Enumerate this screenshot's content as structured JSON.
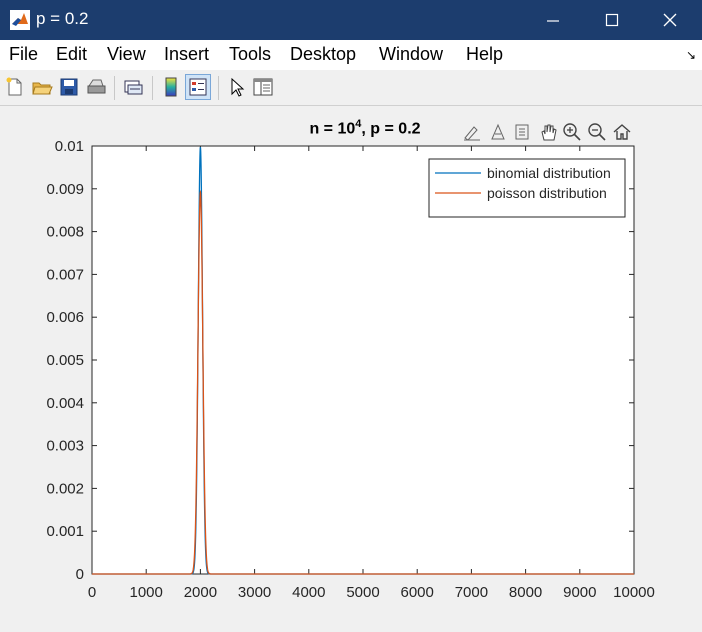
{
  "window": {
    "title": "p = 0.2"
  },
  "menu": [
    "File",
    "Edit",
    "View",
    "Insert",
    "Tools",
    "Desktop",
    "Window",
    "Help"
  ],
  "toolbar": [
    "new-figure",
    "open-file",
    "save-figure",
    "print-figure",
    "link-plot",
    "insert-colorbar",
    "insert-legend",
    "edit-plot",
    "show-plot-tools"
  ],
  "axes_toolbar": [
    "brush-data",
    "data-cursor",
    "zoom-restore-view",
    "pan",
    "zoom-in",
    "zoom-out",
    "restore-home"
  ],
  "colors": {
    "titlebar": "#1c3d6e",
    "binomial": "#0072bd",
    "poisson": "#d95319"
  },
  "chart_data": {
    "type": "line",
    "title": "n = 10^4, p = 0.2",
    "title_parts": {
      "prefix": "n = 10",
      "sup": "4",
      "suffix": ", p = 0.2"
    },
    "xlabel": "",
    "ylabel": "",
    "xlim": [
      0,
      10000
    ],
    "ylim": [
      0,
      0.01
    ],
    "x_ticks": [
      "0",
      "1000",
      "2000",
      "3000",
      "4000",
      "5000",
      "6000",
      "7000",
      "8000",
      "9000",
      "10000"
    ],
    "y_ticks": [
      "0",
      "0.001",
      "0.002",
      "0.003",
      "0.004",
      "0.005",
      "0.006",
      "0.007",
      "0.008",
      "0.009",
      "0.01"
    ],
    "legend_position": "top-right",
    "series": [
      {
        "name": "binomial distribution",
        "mean": 2000,
        "std": 40,
        "peak": 0.00997,
        "x": [
          0,
          1800,
          1860,
          1900,
          1920,
          1940,
          1960,
          1980,
          2000,
          2020,
          2040,
          2060,
          2080,
          2100,
          2140,
          2200,
          10000
        ],
        "y": [
          0,
          0,
          1e-05,
          0.0004,
          0.0013,
          0.0032,
          0.006,
          0.0088,
          0.00997,
          0.0088,
          0.006,
          0.0032,
          0.0013,
          0.0004,
          1e-05,
          0,
          0
        ]
      },
      {
        "name": "poisson distribution",
        "mean": 2000,
        "std": 44.7,
        "peak": 0.00892,
        "x": [
          0,
          1800,
          1860,
          1900,
          1920,
          1940,
          1960,
          1980,
          2000,
          2020,
          2040,
          2060,
          2080,
          2100,
          2140,
          2200,
          10000
        ],
        "y": [
          0,
          0,
          1e-05,
          0.0007,
          0.0018,
          0.0036,
          0.0061,
          0.0081,
          0.00892,
          0.0081,
          0.0061,
          0.0036,
          0.0018,
          0.0007,
          1e-05,
          0,
          0
        ]
      }
    ]
  }
}
